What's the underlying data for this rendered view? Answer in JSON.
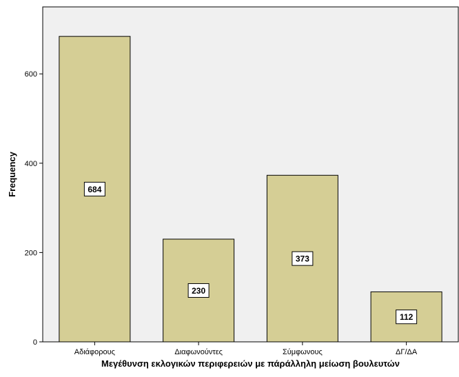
{
  "chart_data": {
    "type": "bar",
    "categories": [
      "Αδιάφορους",
      "Διαφωνούντες",
      "Σύμφωνους",
      "ΔΓ/ΔΑ"
    ],
    "values": [
      684,
      230,
      373,
      112
    ],
    "xlabel": "Μεγέθυνση εκλογικών περιφερειών με πάράλληλη μείωση βουλευτών",
    "ylabel": "Frequency",
    "ylim": [
      0,
      750
    ],
    "yticks": [
      0,
      200,
      400,
      600
    ],
    "grid": false,
    "colors": {
      "plot_background": "#f0f0f0",
      "bar_fill": "#d5ce95",
      "bar_stroke": "#000000",
      "label_box": "#ffffff"
    }
  }
}
